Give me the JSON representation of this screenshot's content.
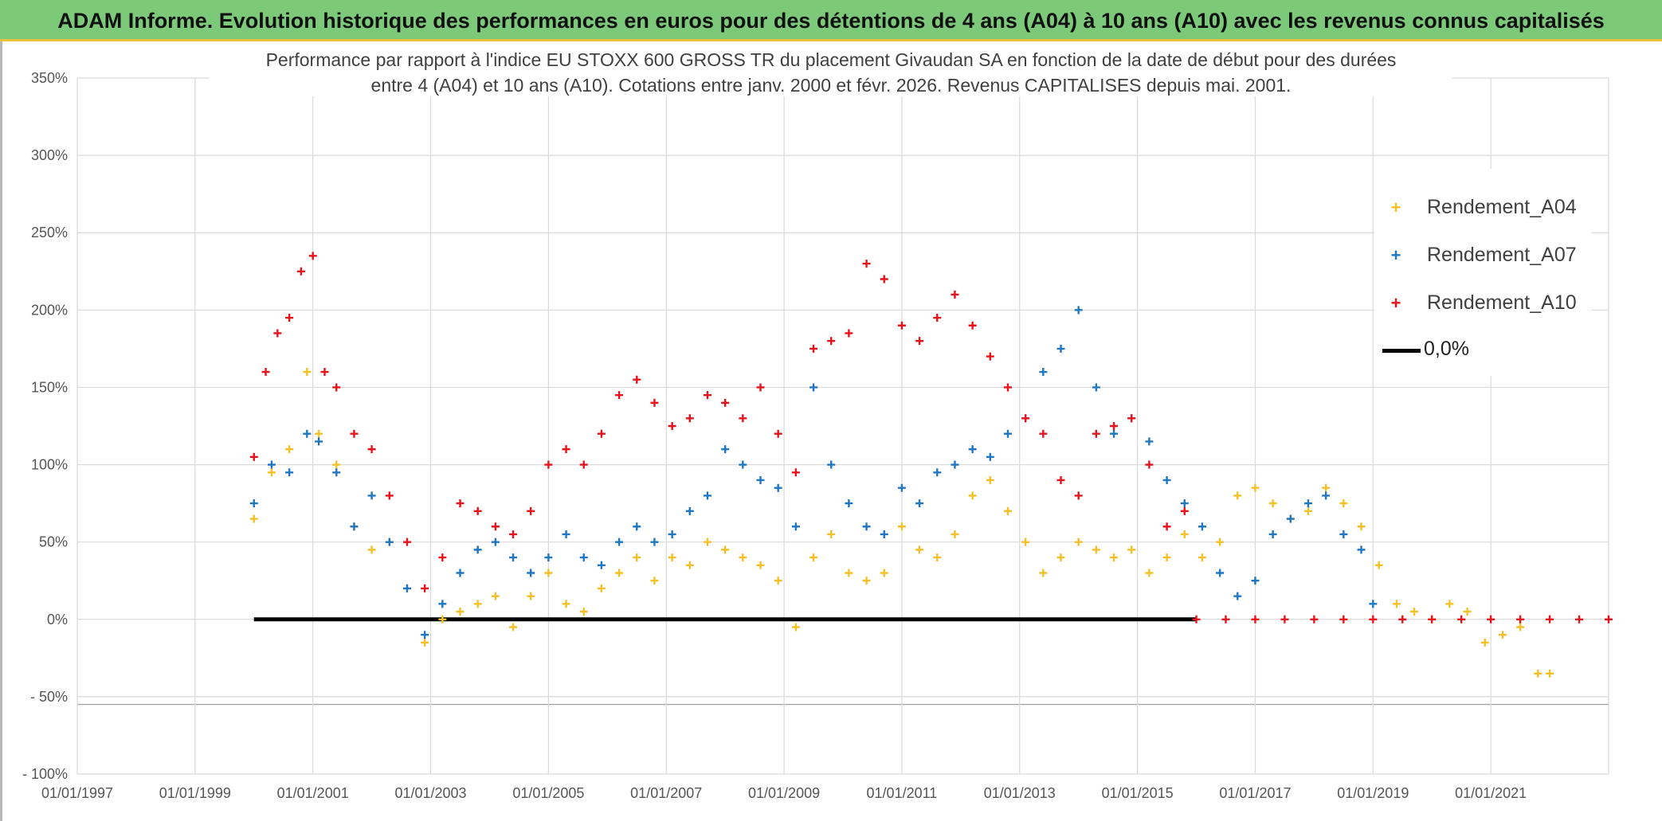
{
  "banner": {
    "title": "ADAM Informe. Evolution historique des performances en euros pour des détentions de 4 ans (A04) à 10 ans (A10) avec les revenus connus capitalisés",
    "color": "#7dc97a"
  },
  "chart_data": {
    "type": "scatter",
    "title_line1": "Performance par rapport à l'indice EU STOXX 600 GROSS TR  du placement Givaudan SA en fonction de la date de début pour des durées",
    "title_line2": "entre 4 (A04) et 10 ans (A10). Cotations entre janv. 2000 et févr. 2026. Revenus CAPITALISES depuis mai. 2001.",
    "ylim": [
      -100,
      350
    ],
    "y_ticks": [
      {
        "value": 350,
        "label": "350%"
      },
      {
        "value": 300,
        "label": "300%"
      },
      {
        "value": 250,
        "label": "250%"
      },
      {
        "value": 200,
        "label": "200%"
      },
      {
        "value": 150,
        "label": "150%"
      },
      {
        "value": 100,
        "label": "100%"
      },
      {
        "value": 50,
        "label": "50%"
      },
      {
        "value": 0,
        "label": "0%"
      },
      {
        "value": -50,
        "label": "- 50%"
      },
      {
        "value": -100,
        "label": "- 100%"
      }
    ],
    "xlim": [
      1997.0,
      2023.0
    ],
    "x_ticks": [
      {
        "value": 1997,
        "label": "01/01/1997"
      },
      {
        "value": 1999,
        "label": "01/01/1999"
      },
      {
        "value": 2001,
        "label": "01/01/2001"
      },
      {
        "value": 2003,
        "label": "01/01/2003"
      },
      {
        "value": 2005,
        "label": "01/01/2005"
      },
      {
        "value": 2007,
        "label": "01/01/2007"
      },
      {
        "value": 2009,
        "label": "01/01/2009"
      },
      {
        "value": 2011,
        "label": "01/01/2011"
      },
      {
        "value": 2013,
        "label": "01/01/2013"
      },
      {
        "value": 2015,
        "label": "01/01/2015"
      },
      {
        "value": 2017,
        "label": "01/01/2017"
      },
      {
        "value": 2019,
        "label": "01/01/2019"
      },
      {
        "value": 2021,
        "label": "01/01/2021"
      }
    ],
    "series": [
      {
        "name": "Rendement_A04",
        "color": "#f5c027",
        "x": [
          2000.0,
          2000.3,
          2000.6,
          2000.9,
          2001.1,
          2001.4,
          2001.7,
          2002.0,
          2002.3,
          2002.6,
          2002.9,
          2003.2,
          2003.5,
          2003.8,
          2004.1,
          2004.4,
          2004.7,
          2005.0,
          2005.3,
          2005.6,
          2005.9,
          2006.2,
          2006.5,
          2006.8,
          2007.1,
          2007.4,
          2007.7,
          2008.0,
          2008.3,
          2008.6,
          2008.9,
          2009.2,
          2009.5,
          2009.8,
          2010.1,
          2010.4,
          2010.7,
          2011.0,
          2011.3,
          2011.6,
          2011.9,
          2012.2,
          2012.5,
          2012.8,
          2013.1,
          2013.4,
          2013.7,
          2014.0,
          2014.3,
          2014.6,
          2014.9,
          2015.2,
          2015.5,
          2015.8,
          2016.1,
          2016.4,
          2016.7,
          2017.0,
          2017.3,
          2017.6,
          2017.9,
          2018.2,
          2018.5,
          2018.8,
          2019.1,
          2019.4,
          2019.7,
          2020.0,
          2020.3,
          2020.6,
          2020.9,
          2021.2,
          2021.5,
          2021.8,
          2022.0
        ],
        "y": [
          65,
          95,
          110,
          160,
          120,
          100,
          60,
          45,
          50,
          20,
          -15,
          0,
          5,
          10,
          15,
          -5,
          15,
          30,
          10,
          5,
          20,
          30,
          40,
          25,
          40,
          35,
          50,
          45,
          40,
          35,
          25,
          -5,
          40,
          55,
          30,
          25,
          30,
          60,
          45,
          40,
          55,
          80,
          90,
          70,
          50,
          30,
          40,
          50,
          45,
          40,
          45,
          30,
          40,
          55,
          40,
          50,
          80,
          85,
          75,
          65,
          70,
          85,
          75,
          60,
          35,
          10,
          5,
          0,
          10,
          5,
          -15,
          -10,
          -5,
          -35,
          -35
        ]
      },
      {
        "name": "Rendement_A07",
        "color": "#1f77c4",
        "x": [
          2000.0,
          2000.3,
          2000.6,
          2000.9,
          2001.1,
          2001.4,
          2001.7,
          2002.0,
          2002.3,
          2002.6,
          2002.9,
          2003.2,
          2003.5,
          2003.8,
          2004.1,
          2004.4,
          2004.7,
          2005.0,
          2005.3,
          2005.6,
          2005.9,
          2006.2,
          2006.5,
          2006.8,
          2007.1,
          2007.4,
          2007.7,
          2008.0,
          2008.3,
          2008.6,
          2008.9,
          2009.2,
          2009.5,
          2009.8,
          2010.1,
          2010.4,
          2010.7,
          2011.0,
          2011.3,
          2011.6,
          2011.9,
          2012.2,
          2012.5,
          2012.8,
          2013.1,
          2013.4,
          2013.7,
          2014.0,
          2014.3,
          2014.6,
          2014.9,
          2015.2,
          2015.5,
          2015.8,
          2016.1,
          2016.4,
          2016.7,
          2017.0,
          2017.3,
          2017.6,
          2017.9,
          2018.2,
          2018.5,
          2018.8,
          2019.0
        ],
        "y": [
          75,
          100,
          95,
          120,
          115,
          95,
          60,
          80,
          50,
          20,
          -10,
          10,
          30,
          45,
          50,
          40,
          30,
          40,
          55,
          40,
          35,
          50,
          60,
          50,
          55,
          70,
          80,
          110,
          100,
          90,
          85,
          60,
          150,
          100,
          75,
          60,
          55,
          85,
          75,
          95,
          100,
          110,
          105,
          120,
          130,
          160,
          175,
          200,
          150,
          120,
          130,
          115,
          90,
          75,
          60,
          30,
          15,
          25,
          55,
          65,
          75,
          80,
          55,
          45,
          10
        ]
      },
      {
        "name": "Rendement_A10",
        "color": "#e8121a",
        "x": [
          2000.0,
          2000.2,
          2000.4,
          2000.6,
          2000.8,
          2001.0,
          2001.2,
          2001.4,
          2001.7,
          2002.0,
          2002.3,
          2002.6,
          2002.9,
          2003.2,
          2003.5,
          2003.8,
          2004.1,
          2004.4,
          2004.7,
          2005.0,
          2005.3,
          2005.6,
          2005.9,
          2006.2,
          2006.5,
          2006.8,
          2007.1,
          2007.4,
          2007.7,
          2008.0,
          2008.3,
          2008.6,
          2008.9,
          2009.2,
          2009.5,
          2009.8,
          2010.1,
          2010.4,
          2010.7,
          2011.0,
          2011.3,
          2011.6,
          2011.9,
          2012.2,
          2012.5,
          2012.8,
          2013.1,
          2013.4,
          2013.7,
          2014.0,
          2014.3,
          2014.6,
          2014.9,
          2015.2,
          2015.5,
          2015.8,
          2016.0,
          2016.5,
          2017.0,
          2017.5,
          2018.0,
          2018.5,
          2019.0,
          2019.5,
          2020.0,
          2020.5,
          2021.0,
          2021.5,
          2022.0,
          2022.5,
          2023.0
        ],
        "y": [
          105,
          160,
          185,
          195,
          225,
          235,
          160,
          150,
          120,
          110,
          80,
          50,
          20,
          40,
          75,
          70,
          60,
          55,
          70,
          100,
          110,
          100,
          120,
          145,
          155,
          140,
          125,
          130,
          145,
          140,
          130,
          150,
          120,
          95,
          175,
          180,
          185,
          230,
          220,
          190,
          180,
          195,
          210,
          190,
          170,
          150,
          130,
          120,
          90,
          80,
          120,
          125,
          130,
          100,
          60,
          70,
          0,
          0,
          0,
          0,
          0,
          0,
          0,
          0,
          0,
          0,
          0,
          0,
          0,
          0,
          0
        ]
      },
      {
        "name": "0,0%",
        "color": "#000000",
        "x": [
          2000.0,
          2016.0
        ],
        "y": [
          0,
          0
        ]
      }
    ],
    "legend": [
      "Rendement_A04",
      "Rendement_A07",
      "Rendement_A10",
      "0,0%"
    ],
    "legend_position": "top-right",
    "grid": true
  }
}
